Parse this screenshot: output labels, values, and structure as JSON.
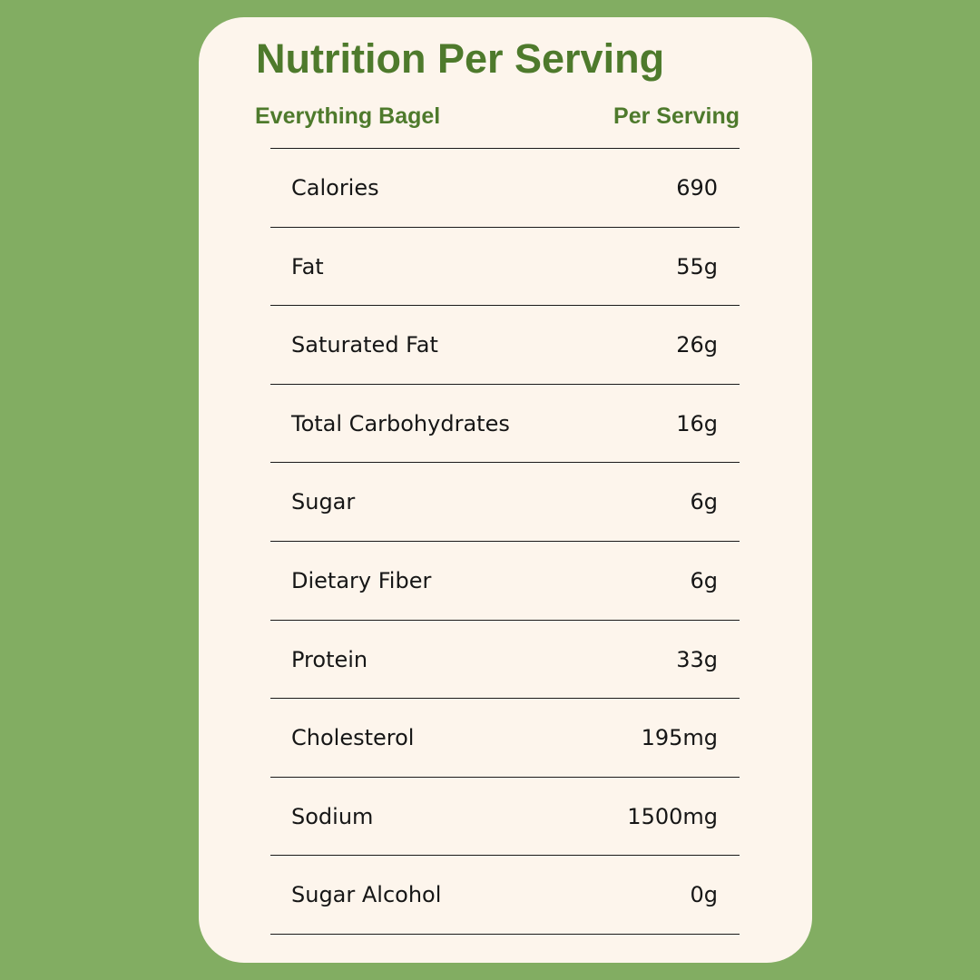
{
  "card": {
    "title": "Nutrition Per Serving",
    "column_left": "Everything Bagel",
    "column_right": "Per Serving"
  },
  "rows": [
    {
      "label": "Calories",
      "value": "690"
    },
    {
      "label": "Fat",
      "value": "55g"
    },
    {
      "label": "Saturated Fat",
      "value": "26g"
    },
    {
      "label": "Total Carbohydrates",
      "value": "16g"
    },
    {
      "label": "Sugar",
      "value": "6g"
    },
    {
      "label": "Dietary Fiber",
      "value": "6g"
    },
    {
      "label": "Protein",
      "value": "33g"
    },
    {
      "label": "Cholesterol",
      "value": "195mg"
    },
    {
      "label": "Sodium",
      "value": "1500mg"
    },
    {
      "label": "Sugar Alcohol",
      "value": "0g"
    }
  ],
  "colors": {
    "background": "#82ad62",
    "card": "#fdf5ec",
    "accent": "#4e7a2c",
    "text": "#161616"
  }
}
